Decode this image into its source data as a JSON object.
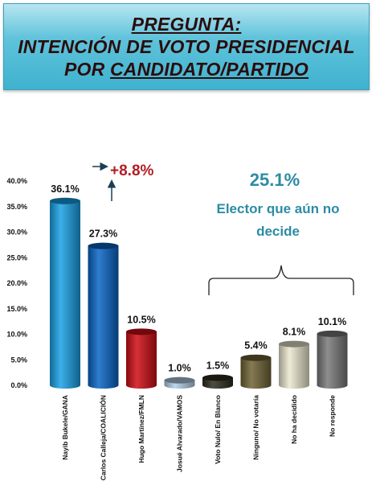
{
  "header": {
    "line1": "PREGUNTA:",
    "line2": "INTENCIÓN DE VOTO PRESIDENCIAL",
    "line3_prefix": "POR ",
    "line3_underlined": "CANDIDATO/PARTIDO"
  },
  "colors": {
    "banner": "#5fc3db",
    "annotation_red": "#b01e23",
    "annotation_teal": "#2c8ca3",
    "arrow_navy": "#1c3f55"
  },
  "annotations": {
    "difference": "+8.8%",
    "undecided_total": "25.1%",
    "undecided_line1": "Elector que aún no",
    "undecided_line2": "decide"
  },
  "chart_data": {
    "type": "bar",
    "categories": [
      "Nayib Bukele/GANA",
      "Carlos Calleja/COALICIÓN",
      "Hugo Martínez/FMLN",
      "Josué Alvarado/VAMOS",
      "Voto Nulo/ En Blanco",
      "Ninguno/ No votaría",
      "No ha decidido",
      "No responde"
    ],
    "values": [
      36.1,
      27.3,
      10.5,
      1.0,
      1.5,
      5.4,
      8.1,
      10.1
    ],
    "value_labels": [
      "36.1%",
      "27.3%",
      "10.5%",
      "1.0%",
      "1.5%",
      "5.4%",
      "8.1%",
      "10.1%"
    ],
    "colors": [
      "#1aa2e6",
      "#0a66c6",
      "#cf0d15",
      "#b3cfe6",
      "#2d2d1e",
      "#706435",
      "#ebe7cf",
      "#7a7a7a"
    ],
    "y_ticks": [
      "0.0%",
      "5.0%",
      "10.0%",
      "15.0%",
      "20.0%",
      "25.0%",
      "30.0%",
      "35.0%",
      "40.0%"
    ],
    "ylim": [
      0,
      40
    ],
    "grid": false,
    "legend": "none"
  }
}
